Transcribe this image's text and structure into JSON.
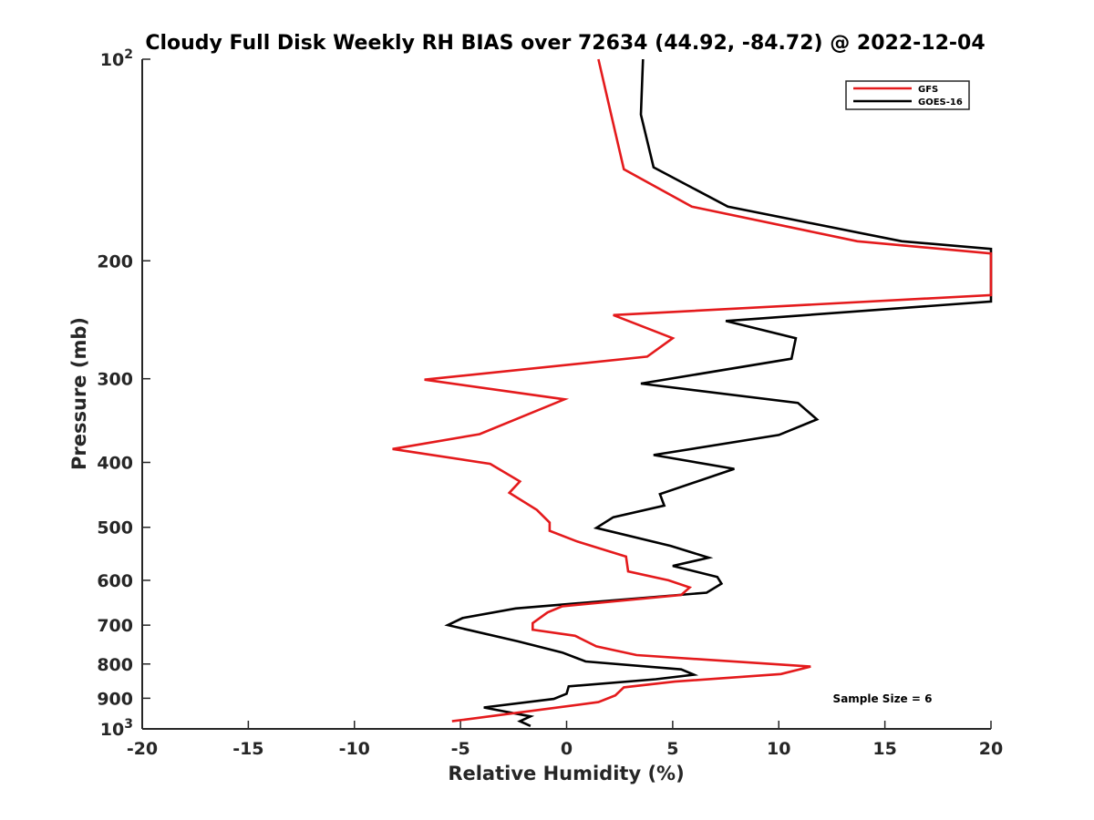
{
  "chart_data": {
    "type": "line",
    "title": "Cloudy Full Disk Weekly RH BIAS over 72634 (44.92, -84.72) @ 2022-12-04",
    "xlabel": "Relative Humidity (%)",
    "ylabel": "Pressure (mb)",
    "xlim": [
      -20,
      20
    ],
    "ylim": [
      100,
      1000
    ],
    "y_scale": "log",
    "y_reversed": true,
    "grid": false,
    "legend_position": "top-right",
    "x_ticks": [
      -20,
      -15,
      -10,
      -5,
      0,
      5,
      10,
      15,
      20
    ],
    "x_tick_labels": [
      "-20",
      "-15",
      "-10",
      "-5",
      "0",
      "5",
      "10",
      "15",
      "20"
    ],
    "y_ticks": [
      100,
      200,
      300,
      400,
      500,
      600,
      700,
      800,
      900,
      1000
    ],
    "y_tick_labels": [
      {
        "base": "10",
        "exp": "2"
      },
      {
        "base": "200",
        "exp": ""
      },
      {
        "base": "300",
        "exp": ""
      },
      {
        "base": "400",
        "exp": ""
      },
      {
        "base": "500",
        "exp": ""
      },
      {
        "base": "600",
        "exp": ""
      },
      {
        "base": "700",
        "exp": ""
      },
      {
        "base": "800",
        "exp": ""
      },
      {
        "base": "900",
        "exp": ""
      },
      {
        "base": "10",
        "exp": "3"
      }
    ],
    "annotation": "Sample Size = 6",
    "series": [
      {
        "name": "GFS",
        "color": "#e41a1c",
        "points": [
          [
            1.5,
            100
          ],
          [
            2.1,
            121
          ],
          [
            2.7,
            146
          ],
          [
            5.9,
            166
          ],
          [
            13.7,
            187
          ],
          [
            20,
            195
          ],
          [
            20,
            225
          ],
          [
            2.2,
            241
          ],
          [
            5.0,
            261
          ],
          [
            3.8,
            278
          ],
          [
            -6.7,
            301
          ],
          [
            -0.1,
            322
          ],
          [
            -4.1,
            363
          ],
          [
            -8.2,
            382
          ],
          [
            -3.6,
            402
          ],
          [
            -2.2,
            427
          ],
          [
            -2.7,
            444
          ],
          [
            -1.4,
            471
          ],
          [
            -0.8,
            492
          ],
          [
            -0.8,
            506
          ],
          [
            0.5,
            525
          ],
          [
            2.8,
            553
          ],
          [
            2.9,
            582
          ],
          [
            4.8,
            600
          ],
          [
            5.8,
            615
          ],
          [
            5.4,
            631
          ],
          [
            -0.2,
            656
          ],
          [
            -0.9,
            670
          ],
          [
            -1.6,
            695
          ],
          [
            -1.6,
            711
          ],
          [
            0.4,
            726
          ],
          [
            1.4,
            753
          ],
          [
            3.3,
            776
          ],
          [
            11.5,
            807
          ],
          [
            10.1,
            828
          ],
          [
            5.1,
            850
          ],
          [
            2.7,
            867
          ],
          [
            2.3,
            891
          ],
          [
            1.5,
            912
          ],
          [
            -3.0,
            952
          ],
          [
            -5.4,
            974
          ]
        ]
      },
      {
        "name": "GOES-16",
        "color": "#000000",
        "points": [
          [
            3.6,
            100
          ],
          [
            3.5,
            121
          ],
          [
            4.1,
            145
          ],
          [
            7.6,
            166
          ],
          [
            15.8,
            187
          ],
          [
            20,
            192
          ],
          [
            20,
            230
          ],
          [
            7.5,
            246
          ],
          [
            10.8,
            261
          ],
          [
            10.6,
            280
          ],
          [
            3.5,
            305
          ],
          [
            10.9,
            326
          ],
          [
            11.8,
            345
          ],
          [
            10.0,
            364
          ],
          [
            4.1,
            390
          ],
          [
            7.9,
            409
          ],
          [
            4.4,
            446
          ],
          [
            4.6,
            464
          ],
          [
            2.2,
            483
          ],
          [
            1.4,
            501
          ],
          [
            4.9,
            533
          ],
          [
            6.7,
            555
          ],
          [
            5.0,
            571
          ],
          [
            7.1,
            593
          ],
          [
            7.3,
            607
          ],
          [
            6.6,
            626
          ],
          [
            -2.4,
            661
          ],
          [
            -4.9,
            683
          ],
          [
            -5.6,
            700
          ],
          [
            -2.3,
            740
          ],
          [
            -0.2,
            769
          ],
          [
            0.9,
            793
          ],
          [
            5.4,
            815
          ],
          [
            6.0,
            830
          ],
          [
            4.2,
            843
          ],
          [
            0.1,
            864
          ],
          [
            0.0,
            886
          ],
          [
            -0.6,
            902
          ],
          [
            -3.9,
            929
          ],
          [
            -1.7,
            958
          ],
          [
            -2.2,
            974
          ],
          [
            -1.7,
            990
          ]
        ]
      }
    ]
  }
}
